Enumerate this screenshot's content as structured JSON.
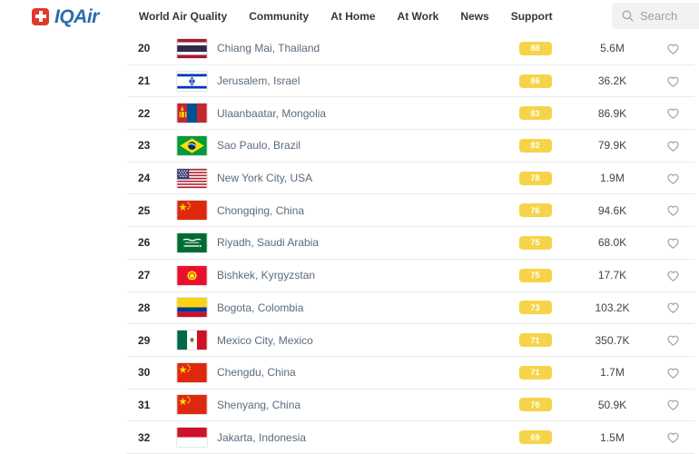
{
  "brand": {
    "iq": "IQ",
    "air": "Air"
  },
  "nav": {
    "items": [
      "World Air Quality",
      "Community",
      "At Home",
      "At Work",
      "News",
      "Support"
    ]
  },
  "search": {
    "placeholder": "Search"
  },
  "icons": {
    "logo_mark": "swiss-cross",
    "search": "magnifier",
    "favorite": "heart-outline"
  },
  "colors": {
    "brand_blue": "#2b6cab",
    "brand_red": "#df3a2c",
    "aqi_moderate_yellow": "#f6d44a",
    "badge_text": "#ffffff",
    "row_divider": "#e9ebed",
    "city_text": "#5a6b7b"
  },
  "table": {
    "rows": [
      {
        "rank": "20",
        "flag_code": "th",
        "flag_icon": "thailand-flag",
        "city": "Chiang Mai, Thailand",
        "aqi": "88",
        "followers": "5.6M"
      },
      {
        "rank": "21",
        "flag_code": "il",
        "flag_icon": "israel-flag",
        "city": "Jerusalem, Israel",
        "aqi": "86",
        "followers": "36.2K"
      },
      {
        "rank": "22",
        "flag_code": "mn",
        "flag_icon": "mongolia-flag",
        "city": "Ulaanbaatar, Mongolia",
        "aqi": "83",
        "followers": "86.9K"
      },
      {
        "rank": "23",
        "flag_code": "br",
        "flag_icon": "brazil-flag",
        "city": "Sao Paulo, Brazil",
        "aqi": "82",
        "followers": "79.9K"
      },
      {
        "rank": "24",
        "flag_code": "us",
        "flag_icon": "usa-flag",
        "city": "New York City, USA",
        "aqi": "78",
        "followers": "1.9M"
      },
      {
        "rank": "25",
        "flag_code": "cn",
        "flag_icon": "china-flag",
        "city": "Chongqing, China",
        "aqi": "76",
        "followers": "94.6K"
      },
      {
        "rank": "26",
        "flag_code": "sa",
        "flag_icon": "saudi-arabia-flag",
        "city": "Riyadh, Saudi Arabia",
        "aqi": "75",
        "followers": "68.0K"
      },
      {
        "rank": "27",
        "flag_code": "kg",
        "flag_icon": "kyrgyzstan-flag",
        "city": "Bishkek, Kyrgyzstan",
        "aqi": "75",
        "followers": "17.7K"
      },
      {
        "rank": "28",
        "flag_code": "co",
        "flag_icon": "colombia-flag",
        "city": "Bogota, Colombia",
        "aqi": "73",
        "followers": "103.2K"
      },
      {
        "rank": "29",
        "flag_code": "mx",
        "flag_icon": "mexico-flag",
        "city": "Mexico City, Mexico",
        "aqi": "71",
        "followers": "350.7K"
      },
      {
        "rank": "30",
        "flag_code": "cn",
        "flag_icon": "china-flag",
        "city": "Chengdu, China",
        "aqi": "71",
        "followers": "1.7M"
      },
      {
        "rank": "31",
        "flag_code": "cn",
        "flag_icon": "china-flag",
        "city": "Shenyang, China",
        "aqi": "70",
        "followers": "50.9K"
      },
      {
        "rank": "32",
        "flag_code": "id",
        "flag_icon": "indonesia-flag",
        "city": "Jakarta, Indonesia",
        "aqi": "69",
        "followers": "1.5M"
      }
    ]
  }
}
